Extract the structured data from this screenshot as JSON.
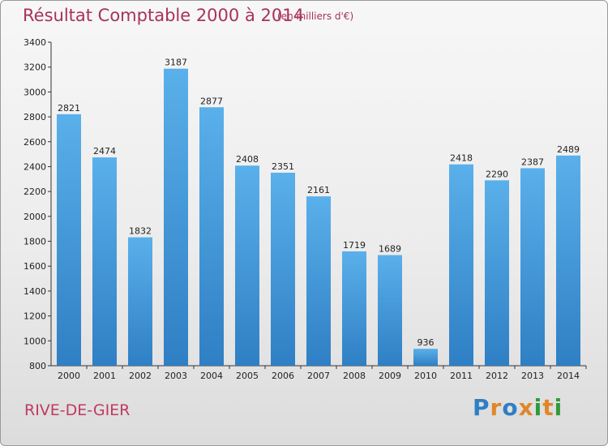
{
  "chart_data": {
    "type": "bar",
    "title": "Résultat Comptable 2000 à 2014",
    "subtitle": "(en milliers d'€)",
    "categories": [
      "2000",
      "2001",
      "2002",
      "2003",
      "2004",
      "2005",
      "2006",
      "2007",
      "2008",
      "2009",
      "2010",
      "2011",
      "2012",
      "2013",
      "2014"
    ],
    "values": [
      2821,
      2474,
      1832,
      3187,
      2877,
      2408,
      2351,
      2161,
      1719,
      1689,
      936,
      2418,
      2290,
      2387,
      2489
    ],
    "ylim": [
      800,
      3400
    ],
    "yticks": [
      800,
      1000,
      1200,
      1400,
      1600,
      1800,
      2000,
      2200,
      2400,
      2600,
      2800,
      3000,
      3200,
      3400
    ],
    "grid": false,
    "bar_color_top": "#5ab0ea",
    "bar_color_bottom": "#2f7fc4"
  },
  "footer": {
    "commune": "RIVE-DE-GIER",
    "logo": "Proxiti"
  },
  "colors": {
    "title": "#a8325a",
    "logo_letters": [
      "#2f7fc4",
      "#e0862a",
      "#2f7fc4",
      "#e0862a",
      "#2f9a3a",
      "#e0862a",
      "#2f9a3a"
    ]
  }
}
